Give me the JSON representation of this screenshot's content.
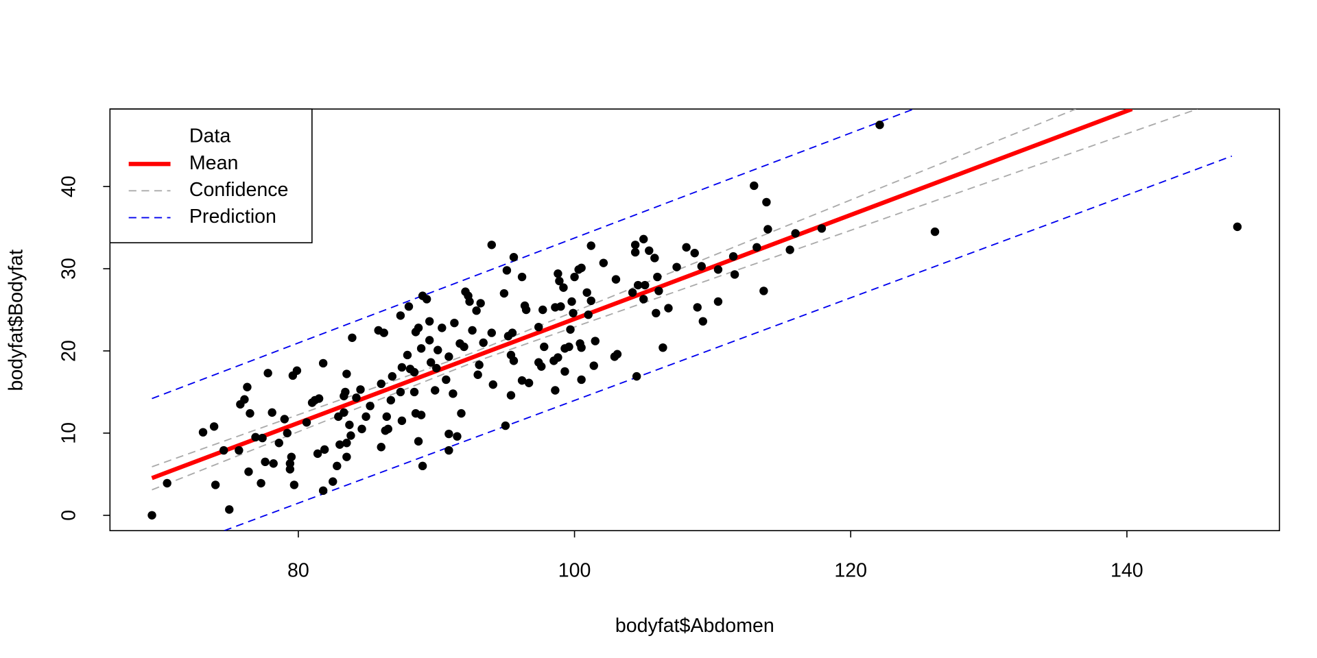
{
  "chart_data": {
    "type": "scatter",
    "xlabel": "bodyfat$Abdomen",
    "ylabel": "bodyfat$Bodyfat",
    "xlim": [
      66.36,
      151.05
    ],
    "ylim": [
      -1.87,
      49.43
    ],
    "xticks": [
      80,
      100,
      120,
      140
    ],
    "yticks": [
      0,
      10,
      20,
      30,
      40
    ],
    "grid": false,
    "legend": "top-left",
    "series": [
      {
        "name": "Data",
        "type": "scatter",
        "color": "#000000",
        "x": [
          69.4,
          70.5,
          122.1,
          126.1,
          148.0,
          113.0,
          113.9,
          117.9,
          116.0,
          114.0,
          115.6,
          113.7,
          113.2,
          111.5,
          111.6,
          110.4,
          110.4,
          109.2,
          108.7,
          108.1,
          109.3,
          108.9,
          107.4,
          106.8,
          106.4,
          105.8,
          105.4,
          105.0,
          104.4,
          104.4,
          104.6,
          104.2,
          105.1,
          105.0,
          105.9,
          106.1,
          106.0,
          104.5,
          103.0,
          102.1,
          101.2,
          102.9,
          103.1,
          101.5,
          101.4,
          100.9,
          101.2,
          101.0,
          100.3,
          100.0,
          100.5,
          100.4,
          100.5,
          100.5,
          99.9,
          99.7,
          99.8,
          99.6,
          99.2,
          98.8,
          98.9,
          99.0,
          98.6,
          99.3,
          98.8,
          99.3,
          98.6,
          98.5,
          97.6,
          97.4,
          97.8,
          97.7,
          97.4,
          96.5,
          96.4,
          96.2,
          96.7,
          96.2,
          95.6,
          95.1,
          94.9,
          94.0,
          95.5,
          95.2,
          95.4,
          95.6,
          95.4,
          95.0,
          94.0,
          94.1,
          93.4,
          93.2,
          92.9,
          93.1,
          93.0,
          92.6,
          92.3,
          92.1,
          92.4,
          92.0,
          91.7,
          91.8,
          91.5,
          90.9,
          90.9,
          91.2,
          91.3,
          90.9,
          90.7,
          90.4,
          90.1,
          90.0,
          89.9,
          89.6,
          89.5,
          89.5,
          89.3,
          89.0,
          88.9,
          88.7,
          88.5,
          88.4,
          88.1,
          88.4,
          88.9,
          88.5,
          88.7,
          89.0,
          88.0,
          87.4,
          87.5,
          87.9,
          87.4,
          87.5,
          86.8,
          86.7,
          86.4,
          86.5,
          86.3,
          85.8,
          86.2,
          86.0,
          86.0,
          85.2,
          84.9,
          84.6,
          84.5,
          84.2,
          83.9,
          83.8,
          83.5,
          83.4,
          83.3,
          83.3,
          83.7,
          83.5,
          83.5,
          83.0,
          82.9,
          82.8,
          82.5,
          81.8,
          81.8,
          81.5,
          81.2,
          81.0,
          81.4,
          81.9,
          80.6,
          79.9,
          79.6,
          79.5,
          79.4,
          79.4,
          79.7,
          79.2,
          79.0,
          78.6,
          78.1,
          78.2,
          77.8,
          77.6,
          77.4,
          77.3,
          76.9,
          76.3,
          76.1,
          76.5,
          76.4,
          75.8,
          75.7,
          74.6,
          75.0,
          73.9,
          73.1,
          74.0
        ],
        "values": [
          0.0,
          3.9,
          47.5,
          34.5,
          35.1,
          40.1,
          38.1,
          34.9,
          34.3,
          34.8,
          32.3,
          27.3,
          32.6,
          31.5,
          29.3,
          29.9,
          26.0,
          30.3,
          31.9,
          32.6,
          23.6,
          25.3,
          30.2,
          25.2,
          20.4,
          31.3,
          32.2,
          33.6,
          32.9,
          32.0,
          28.0,
          27.1,
          28.0,
          26.3,
          24.6,
          27.3,
          29.0,
          16.9,
          28.7,
          30.7,
          32.8,
          19.3,
          19.6,
          21.2,
          18.2,
          27.1,
          26.1,
          24.4,
          29.9,
          29.0,
          30.1,
          20.9,
          20.4,
          16.5,
          24.6,
          22.6,
          26.0,
          20.5,
          27.7,
          29.4,
          28.5,
          25.4,
          25.3,
          20.3,
          19.2,
          17.5,
          15.2,
          18.8,
          18.1,
          18.6,
          20.5,
          25.0,
          22.9,
          25.0,
          25.5,
          29.0,
          16.1,
          16.4,
          31.4,
          29.8,
          27.0,
          32.9,
          22.2,
          21.8,
          19.5,
          18.8,
          14.6,
          10.9,
          22.2,
          15.9,
          21.0,
          25.8,
          24.9,
          18.3,
          17.1,
          22.5,
          26.7,
          27.2,
          26.0,
          20.5,
          20.9,
          12.4,
          9.6,
          7.9,
          9.9,
          14.8,
          23.4,
          19.3,
          16.5,
          22.8,
          20.1,
          17.9,
          15.2,
          18.6,
          21.3,
          23.6,
          26.3,
          26.7,
          20.3,
          22.8,
          22.3,
          17.4,
          17.8,
          15.0,
          12.2,
          12.4,
          9.0,
          6.0,
          25.4,
          24.3,
          18.0,
          19.5,
          15.0,
          11.5,
          16.9,
          14.0,
          12.0,
          10.5,
          10.3,
          22.5,
          22.2,
          16.0,
          8.3,
          13.3,
          12.0,
          10.5,
          15.3,
          14.3,
          21.6,
          9.7,
          17.2,
          15.0,
          14.5,
          12.5,
          11.0,
          8.8,
          7.1,
          8.6,
          12.0,
          6.0,
          4.1,
          3.0,
          18.5,
          14.2,
          14.0,
          13.7,
          7.5,
          8.0,
          11.3,
          17.6,
          17.0,
          7.1,
          6.3,
          5.6,
          3.7,
          10.0,
          11.7,
          8.8,
          12.5,
          6.3,
          17.3,
          6.5,
          9.4,
          3.9,
          9.5,
          15.6,
          14.1,
          12.4,
          5.3,
          13.5,
          7.9,
          7.9,
          0.7,
          10.8,
          10.1,
          3.7
        ]
      },
      {
        "name": "Mean",
        "type": "line",
        "color": "#ff0000",
        "width": 5,
        "dashed": false,
        "lines": [
          {
            "x": [
              69.4,
              140.37
            ],
            "values": [
              4.53,
              49.43
            ]
          }
        ]
      },
      {
        "name": "Confidence",
        "type": "line",
        "color": "#aaaaaa",
        "width": 1.5,
        "dashed": true,
        "lines": [
          {
            "x": [
              69.4,
              92.5,
              136.3
            ],
            "values": [
              5.9,
              19.7,
              49.43
            ]
          },
          {
            "x": [
              69.4,
              92.5,
              145.1
            ],
            "values": [
              3.1,
              18.5,
              49.43
            ]
          }
        ]
      },
      {
        "name": "Prediction",
        "type": "line",
        "color": "#0000ee",
        "width": 1.5,
        "dashed": true,
        "lines": [
          {
            "x": [
              69.4,
              124.57
            ],
            "values": [
              14.2,
              49.43
            ]
          },
          {
            "x": [
              74.63,
              147.6
            ],
            "values": [
              -1.87,
              43.7
            ]
          }
        ]
      }
    ]
  }
}
